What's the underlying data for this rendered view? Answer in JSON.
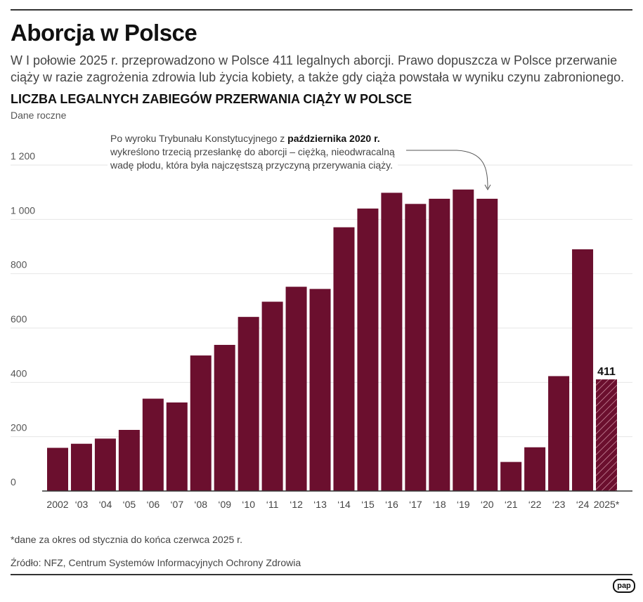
{
  "header": {
    "title": "Aborcja w Polsce",
    "lead": "W I połowie 2025 r. przeprowadzono w Polsce 411 legalnych aborcji. Prawo dopuszcza w Polsce przerwanie ciąży w razie zagrożenia zdrowia lub życia kobiety, a także gdy ciąża powstała w wyniku czynu zabronionego."
  },
  "annotation": {
    "line1_prefix": "Po wyroku Trybunału Konstytucyjnego z ",
    "line1_bold": "października 2020 r.",
    "line2": "wykreślono trzecią przesłankę do aborcji – ciężką, nieodwracalną",
    "line3": "wadę płodu, która była najczęstszą przyczyną przerywania ciąży."
  },
  "footer": {
    "note": "*dane za okres od stycznia do końca czerwca 2025 r.",
    "source": "Źródło: NFZ, Centrum Systemów Informacyjnych Ochrony Zdrowia",
    "logo": "pap"
  },
  "colors": {
    "bar": "#6b0f2e",
    "grid": "#e6e6e6",
    "axis": "#333333"
  },
  "chart_data": {
    "type": "bar",
    "title": "LICZBA LEGALNYCH ZABIEGÓW PRZERWANIA CIĄŻY W POLSCE",
    "subtitle": "Dane roczne",
    "categories": [
      "2002",
      "‘03",
      "‘04",
      "‘05",
      "‘06",
      "‘07",
      "‘08",
      "‘09",
      "‘10",
      "‘11",
      "‘12",
      "‘13",
      "‘14",
      "‘15",
      "‘16",
      "‘17",
      "‘18",
      "‘19",
      "‘20",
      "‘21",
      "‘22",
      "‘23",
      "‘24",
      "2025*"
    ],
    "values": [
      159,
      174,
      193,
      225,
      340,
      326,
      499,
      538,
      641,
      697,
      752,
      744,
      971,
      1040,
      1098,
      1057,
      1076,
      1110,
      1076,
      107,
      161,
      423,
      890,
      411
    ],
    "hatched": [
      false,
      false,
      false,
      false,
      false,
      false,
      false,
      false,
      false,
      false,
      false,
      false,
      false,
      false,
      false,
      false,
      false,
      false,
      false,
      false,
      false,
      false,
      false,
      true
    ],
    "data_labels": {
      "2025*": "411"
    },
    "yticks": [
      0,
      200,
      400,
      600,
      800,
      1000,
      1200
    ],
    "ytick_labels": [
      "0",
      "200",
      "400",
      "600",
      "800",
      "1 000",
      "1 200"
    ],
    "ylim": [
      0,
      1200
    ],
    "grid": true,
    "legend": "none"
  }
}
